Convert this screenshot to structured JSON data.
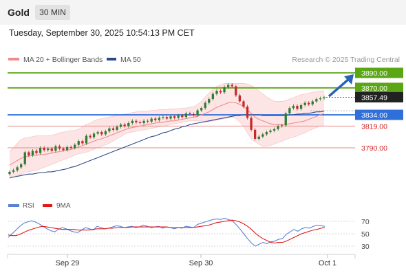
{
  "header": {
    "title": "Gold",
    "timeframe": "30 MIN",
    "datetime": "Tuesday, September 30, 2025 10:54:13 PM CET"
  },
  "legend": {
    "ma20": "MA 20 + Bollinger Bands",
    "ma50": "MA 50",
    "credit": "Research © 2025 Trading Central"
  },
  "rsi_legend": {
    "rsi": "RSI",
    "ma": "9MA"
  },
  "colors": {
    "up": "#2e7d32",
    "down": "#c62828",
    "ma20": "#f08a8a",
    "band_fill": "#fde0e0",
    "ma50": "#2a4a8c",
    "resistance": "#5ba614",
    "pivot": "#2f6fdc",
    "support": "#e88a8a",
    "rsi": "#5b7fd9",
    "rsi_ma": "#e01818",
    "arrow": "#2a63b8"
  },
  "chart_data": [
    {
      "type": "candlestick",
      "title": "Gold",
      "ylim": [
        3745,
        3895
      ],
      "x_ticks": [
        "Sep 29",
        "Sep 30",
        "Oct 1"
      ],
      "last_price": 3857.49,
      "levels": [
        {
          "label": "3890.00",
          "value": 3890,
          "kind": "resistance"
        },
        {
          "label": "3870.00",
          "value": 3870,
          "kind": "resistance"
        },
        {
          "label": "3834.00",
          "value": 3834,
          "kind": "pivot"
        },
        {
          "label": "3819.00",
          "value": 3819,
          "kind": "support"
        },
        {
          "label": "3790.00",
          "value": 3790,
          "kind": "support"
        }
      ],
      "closes": [
        3758,
        3760,
        3764,
        3768,
        3784,
        3780,
        3786,
        3783,
        3790,
        3787,
        3789,
        3786,
        3792,
        3789,
        3787,
        3791,
        3790,
        3794,
        3799,
        3796,
        3806,
        3804,
        3809,
        3811,
        3808,
        3812,
        3816,
        3814,
        3818,
        3821,
        3819,
        3823,
        3826,
        3824,
        3823,
        3826,
        3825,
        3829,
        3827,
        3830,
        3831,
        3829,
        3832,
        3830,
        3833,
        3831,
        3836,
        3835,
        3834,
        3840,
        3843,
        3850,
        3855,
        3862,
        3866,
        3864,
        3871,
        3874,
        3872,
        3860,
        3852,
        3845,
        3830,
        3814,
        3802,
        3805,
        3808,
        3811,
        3813,
        3815,
        3819,
        3820,
        3836,
        3843,
        3846,
        3842,
        3847,
        3850,
        3848,
        3852,
        3855,
        3856,
        3857.49
      ],
      "ma20": [
        3767,
        3770,
        3773,
        3776,
        3778,
        3779,
        3780,
        3780,
        3781,
        3781,
        3782,
        3783,
        3784,
        3785,
        3786,
        3787,
        3788,
        3789,
        3791,
        3793,
        3795,
        3797,
        3799,
        3801,
        3802,
        3804,
        3806,
        3808,
        3810,
        3812,
        3814,
        3816,
        3817,
        3818,
        3819,
        3820,
        3821,
        3822,
        3823,
        3824,
        3824,
        3825,
        3826,
        3826,
        3827,
        3828,
        3829,
        3830,
        3831,
        3832,
        3834,
        3836,
        3838,
        3841,
        3844,
        3846,
        3848,
        3850,
        3851,
        3850,
        3848,
        3845,
        3841,
        3836,
        3831,
        3828,
        3826,
        3824,
        3822,
        3821,
        3821,
        3821,
        3821,
        3822,
        3823,
        3824,
        3825,
        3826,
        3828,
        3830,
        3832,
        3834,
        3836
      ],
      "band_upper": [
        3785,
        3790,
        3796,
        3801,
        3803,
        3804,
        3805,
        3806,
        3806,
        3806,
        3806,
        3807,
        3808,
        3810,
        3811,
        3812,
        3813,
        3813,
        3815,
        3818,
        3821,
        3823,
        3826,
        3828,
        3829,
        3830,
        3831,
        3832,
        3833,
        3834,
        3835,
        3836,
        3837,
        3838,
        3839,
        3839,
        3839,
        3840,
        3840,
        3841,
        3841,
        3841,
        3842,
        3842,
        3842,
        3843,
        3843,
        3844,
        3845,
        3848,
        3852,
        3858,
        3863,
        3868,
        3872,
        3874,
        3876,
        3876,
        3876,
        3876,
        3876,
        3876,
        3875,
        3873,
        3870,
        3866,
        3862,
        3858,
        3855,
        3852,
        3852,
        3852,
        3853,
        3855,
        3857,
        3859,
        3861,
        3862,
        3863,
        3864,
        3865,
        3866,
        3866
      ],
      "band_lower": [
        3749,
        3751,
        3753,
        3755,
        3757,
        3758,
        3759,
        3760,
        3762,
        3764,
        3766,
        3768,
        3770,
        3772,
        3774,
        3776,
        3778,
        3780,
        3782,
        3783,
        3784,
        3786,
        3788,
        3790,
        3792,
        3794,
        3796,
        3799,
        3802,
        3805,
        3808,
        3810,
        3811,
        3812,
        3813,
        3814,
        3815,
        3816,
        3817,
        3818,
        3819,
        3820,
        3821,
        3822,
        3823,
        3824,
        3825,
        3826,
        3826,
        3826,
        3826,
        3825,
        3825,
        3826,
        3827,
        3828,
        3829,
        3830,
        3831,
        3829,
        3825,
        3818,
        3810,
        3802,
        3798,
        3795,
        3792,
        3792,
        3793,
        3795,
        3797,
        3799,
        3801,
        3803,
        3804,
        3806,
        3808,
        3810,
        3813,
        3815,
        3817,
        3819,
        3821
      ],
      "ma50": [
        3750,
        3751,
        3752,
        3753,
        3754,
        3755,
        3755,
        3756,
        3757,
        3757,
        3758,
        3758,
        3759,
        3760,
        3761,
        3762,
        3764,
        3765,
        3767,
        3769,
        3771,
        3773,
        3775,
        3777,
        3779,
        3781,
        3783,
        3785,
        3787,
        3789,
        3791,
        3793,
        3795,
        3797,
        3799,
        3801,
        3803,
        3805,
        3806,
        3808,
        3810,
        3811,
        3813,
        3815,
        3816,
        3818,
        3819,
        3821,
        3822,
        3823,
        3824,
        3825,
        3826,
        3827,
        3828,
        3829,
        3830,
        3831,
        3832,
        3833,
        3833,
        3834,
        3834,
        3834,
        3834,
        3834,
        3833,
        3833,
        3833,
        3833,
        3833,
        3833,
        3833,
        3834,
        3834,
        3835,
        3835,
        3836,
        3836,
        3837,
        3838,
        3838,
        3839
      ]
    },
    {
      "type": "line",
      "title": "RSI",
      "y_ticks": [
        "70",
        "50",
        "30"
      ],
      "ylim": [
        20,
        80
      ],
      "series": [
        {
          "name": "RSI",
          "values": [
            44,
            50,
            56,
            62,
            67,
            69,
            71,
            69,
            66,
            62,
            58,
            55,
            53,
            57,
            60,
            58,
            55,
            53,
            52,
            56,
            60,
            58,
            56,
            62,
            60,
            58,
            59,
            61,
            63,
            62,
            60,
            61,
            62,
            60,
            61,
            64,
            62,
            60,
            61,
            62,
            59,
            61,
            60,
            58,
            60,
            59,
            62,
            61,
            60,
            65,
            67,
            69,
            71,
            73,
            74,
            73,
            75,
            73,
            71,
            65,
            58,
            50,
            42,
            35,
            30,
            33,
            36,
            34,
            37,
            38,
            41,
            42,
            49,
            53,
            57,
            54,
            58,
            60,
            59,
            62,
            64,
            63,
            62
          ]
        },
        {
          "name": "9MA",
          "values": [
            48,
            47,
            47,
            49,
            52,
            55,
            57,
            59,
            61,
            62,
            61,
            60,
            59,
            58,
            57,
            57,
            57,
            57,
            56,
            56,
            56,
            56,
            57,
            58,
            58,
            58,
            59,
            59,
            60,
            60,
            60,
            60,
            61,
            61,
            61,
            61,
            61,
            61,
            61,
            61,
            61,
            61,
            60,
            60,
            60,
            60,
            60,
            60,
            60,
            61,
            62,
            63,
            64,
            66,
            68,
            69,
            70,
            71,
            72,
            71,
            69,
            66,
            62,
            57,
            51,
            46,
            42,
            39,
            36,
            35,
            36,
            36,
            38,
            41,
            44,
            47,
            50,
            52,
            54,
            56,
            57,
            59,
            60
          ]
        }
      ]
    }
  ]
}
